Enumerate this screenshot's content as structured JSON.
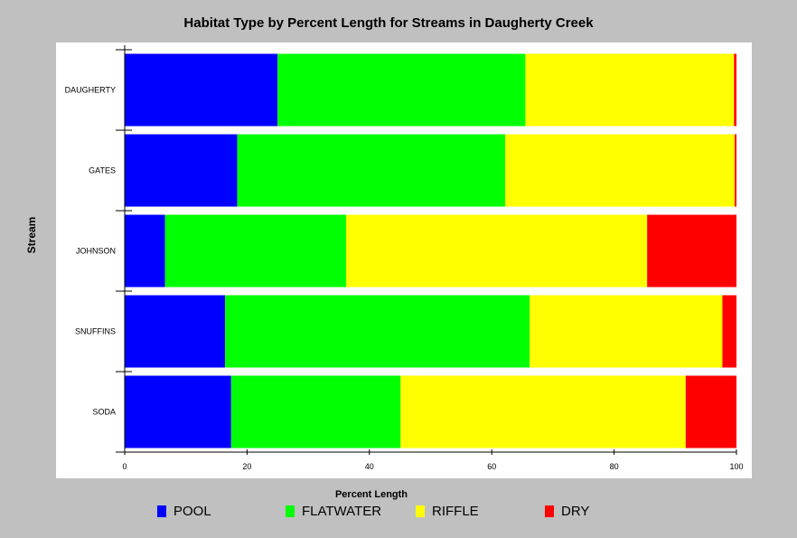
{
  "chart_data": {
    "type": "bar",
    "orientation": "horizontal",
    "stacked": true,
    "title": "Habitat Type by Percent Length for Streams in Daugherty Creek",
    "xlabel": "Percent Length",
    "ylabel": "Stream",
    "xlim": [
      0,
      100
    ],
    "xticks": [
      0,
      20,
      40,
      60,
      80,
      100
    ],
    "categories": [
      "DAUGHERTY",
      "GATES",
      "JOHNSON",
      "SNUFFINS",
      "SODA"
    ],
    "series": [
      {
        "name": "POOL",
        "color": "#0000ff",
        "values": [
          25.0,
          18.4,
          6.6,
          16.4,
          17.4
        ]
      },
      {
        "name": "FLATWATER",
        "color": "#00ff00",
        "values": [
          40.5,
          43.8,
          29.6,
          49.8,
          27.7
        ]
      },
      {
        "name": "RIFFLE",
        "color": "#ffff00",
        "values": [
          34.1,
          37.5,
          49.2,
          31.5,
          46.6
        ]
      },
      {
        "name": "DRY",
        "color": "#ff0000",
        "values": [
          0.4,
          0.3,
          14.6,
          2.3,
          8.3
        ]
      }
    ],
    "legend_position": "bottom",
    "grid": false
  }
}
